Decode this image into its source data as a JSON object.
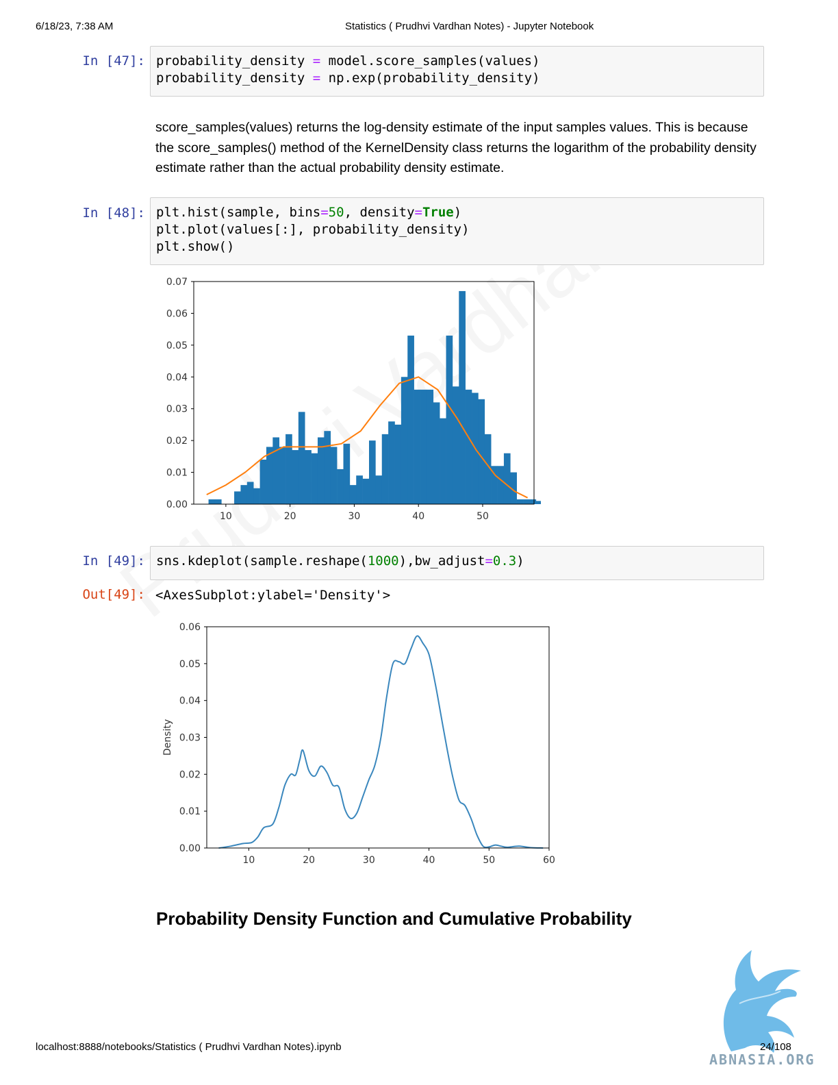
{
  "header": {
    "datetime": "6/18/23, 7:38 AM",
    "title": "Statistics ( Prudhvi Vardhan Notes) - Jupyter Notebook"
  },
  "footer": {
    "url": "localhost:8888/notebooks/Statistics ( Prudhvi Vardhan Notes).ipynb",
    "page": "24/108",
    "logo_text": "ABNASIA.ORG"
  },
  "watermark": "Prudhvi Vardhan",
  "cells": [
    {
      "prompt": "In [47]:",
      "lines": [
        [
          [
            "t",
            "probability_density "
          ],
          [
            "op",
            "="
          ],
          [
            "t",
            " model.score_samples(values)"
          ]
        ],
        [
          [
            "t",
            "probability_density "
          ],
          [
            "op",
            "="
          ],
          [
            "t",
            " np.exp(probability_density)"
          ]
        ]
      ]
    },
    {
      "prompt": "In [48]:",
      "lines": [
        [
          [
            "t",
            "plt.hist(sample, bins"
          ],
          [
            "op",
            "="
          ],
          [
            "num",
            "50"
          ],
          [
            "t",
            ", density"
          ],
          [
            "op",
            "="
          ],
          [
            "kw",
            "True"
          ],
          [
            "t",
            ")"
          ]
        ],
        [
          [
            "t",
            "plt.plot(values[:], probability_density)"
          ]
        ],
        [
          [
            "t",
            "plt.show()"
          ]
        ]
      ]
    },
    {
      "prompt": "In [49]:",
      "lines": [
        [
          [
            "t",
            "sns.kdeplot(sample.reshape("
          ],
          [
            "num",
            "1000"
          ],
          [
            "t",
            "),bw_adjust"
          ],
          [
            "op",
            "="
          ],
          [
            "num",
            "0.3"
          ],
          [
            "t",
            ")"
          ]
        ]
      ]
    }
  ],
  "markdown": {
    "explanation": "score_samples(values) returns the log-density estimate of the input samples values. This is because the score_samples() method of the KernelDensity class returns the logarithm of the probability density estimate rather than the actual probability density estimate.",
    "heading": "Probability Density Function and Cumulative Probability"
  },
  "output49": {
    "prompt": "Out[49]:",
    "text": "<AxesSubplot:ylabel='Density'>"
  },
  "colors": {
    "hist": "#1f77b4",
    "kde_line": "#ff7f0e",
    "seaborn_line": "#3a87bd",
    "in_prompt": "#303f9f",
    "out_prompt": "#d84315"
  },
  "chart_data": [
    {
      "type": "bar",
      "title": "",
      "xlabel": "",
      "ylabel": "",
      "xlim": [
        5,
        58
      ],
      "ylim": [
        0,
        0.07
      ],
      "xticks": [
        "10",
        "20",
        "30",
        "40",
        "50"
      ],
      "yticks": [
        "0.00",
        "0.01",
        "0.02",
        "0.03",
        "0.04",
        "0.05",
        "0.06",
        "0.07"
      ],
      "bin_start": 7.3,
      "bin_width": 1.0,
      "values": [
        0.0015,
        0.0015,
        0,
        0,
        0.004,
        0.006,
        0.007,
        0.005,
        0.014,
        0.018,
        0.021,
        0.018,
        0.022,
        0.017,
        0.029,
        0.017,
        0.016,
        0.021,
        0.023,
        0.018,
        0.011,
        0.019,
        0.006,
        0.009,
        0.008,
        0.02,
        0.009,
        0.022,
        0.026,
        0.025,
        0.04,
        0.053,
        0.036,
        0.036,
        0.036,
        0.032,
        0.027,
        0.053,
        0.037,
        0.067,
        0.036,
        0.035,
        0.033,
        0.022,
        0.012,
        0.012,
        0.016,
        0.01,
        0.0015,
        0.0015,
        0.0015,
        0.001,
        0,
        0.001,
        0.0015
      ],
      "series": [
        {
          "type": "line",
          "x": [
            7,
            10,
            13,
            16,
            19,
            22,
            25,
            28,
            31,
            34,
            37,
            40,
            43,
            46,
            49,
            52,
            55,
            57
          ],
          "y": [
            0.003,
            0.006,
            0.01,
            0.015,
            0.018,
            0.018,
            0.018,
            0.019,
            0.023,
            0.031,
            0.038,
            0.04,
            0.036,
            0.027,
            0.017,
            0.009,
            0.004,
            0.002
          ]
        }
      ]
    },
    {
      "type": "line",
      "title": "",
      "xlabel": "",
      "ylabel": "Density",
      "xlim": [
        3,
        60
      ],
      "ylim": [
        0,
        0.06
      ],
      "xticks": [
        "10",
        "20",
        "30",
        "40",
        "50",
        "60"
      ],
      "yticks": [
        "0.00",
        "0.01",
        "0.02",
        "0.03",
        "0.04",
        "0.05",
        "0.06"
      ],
      "series": [
        {
          "x": [
            5,
            7,
            9,
            10.5,
            11.5,
            12.5,
            14,
            15,
            16,
            17,
            17.8,
            18.5,
            19,
            20,
            21,
            22,
            23,
            24,
            25,
            26,
            27,
            28,
            29,
            30,
            31,
            32,
            33,
            34,
            35,
            36,
            37,
            38,
            39,
            40,
            41,
            42,
            43,
            44,
            45,
            46,
            47,
            48,
            49,
            50,
            51,
            52,
            53,
            55,
            57,
            59
          ],
          "y": [
            0,
            0.0005,
            0.0012,
            0.0015,
            0.003,
            0.0055,
            0.0065,
            0.011,
            0.017,
            0.02,
            0.0198,
            0.024,
            0.0265,
            0.021,
            0.0195,
            0.0222,
            0.0205,
            0.017,
            0.0165,
            0.0105,
            0.008,
            0.0095,
            0.014,
            0.0185,
            0.0225,
            0.03,
            0.0415,
            0.05,
            0.0505,
            0.05,
            0.054,
            0.0575,
            0.0555,
            0.0525,
            0.045,
            0.036,
            0.027,
            0.019,
            0.013,
            0.0115,
            0.008,
            0.0035,
            0.0005,
            0.0003,
            0.0008,
            0.0005,
            0.0002,
            0.0005,
            0.0001,
            0
          ]
        }
      ]
    }
  ]
}
